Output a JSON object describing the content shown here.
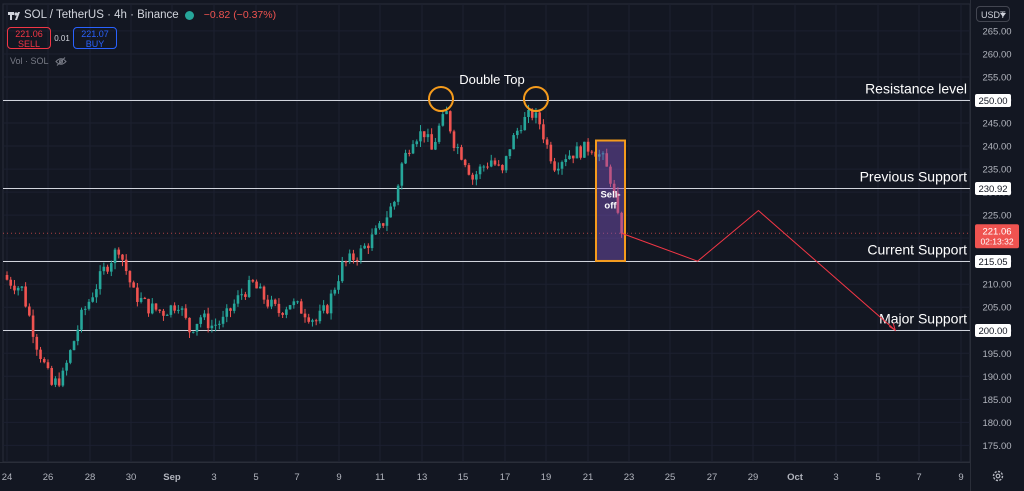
{
  "header": {
    "symbol": "SOL / TetherUS · 4h · Binance",
    "change": "−0.82 (−0.37%)",
    "sell_price": "221.06",
    "sell_label": "SELL",
    "spread": "0.01",
    "buy_price": "221.07",
    "buy_label": "BUY",
    "volume_label": "Vol · SOL",
    "currency_selector": "USDT",
    "up_color": "#26a69a",
    "down_color": "#ef5350"
  },
  "chart_data": {
    "type": "candlestick",
    "symbol": "SOL/USDT",
    "timeframe": "4h",
    "ylim": [
      170,
      267
    ],
    "y_ticks": [
      175,
      180,
      185,
      190,
      195,
      200,
      205,
      210,
      215,
      220,
      225,
      230,
      235,
      240,
      245,
      250,
      255,
      260,
      265
    ],
    "x_ticks": [
      "24",
      "26",
      "28",
      "30",
      "Sep",
      "3",
      "5",
      "7",
      "9",
      "11",
      "13",
      "15",
      "17",
      "19",
      "21",
      "23",
      "25",
      "27",
      "29",
      "Oct",
      "3",
      "5",
      "7",
      "9"
    ],
    "close_path": [
      [
        0,
        211
      ],
      [
        4,
        209
      ],
      [
        8,
        197
      ],
      [
        12,
        188
      ],
      [
        15,
        190
      ],
      [
        20,
        203
      ],
      [
        26,
        213
      ],
      [
        30,
        218
      ],
      [
        34,
        208
      ],
      [
        38,
        205
      ],
      [
        42,
        204
      ],
      [
        46,
        206
      ],
      [
        49,
        200
      ],
      [
        52,
        203
      ],
      [
        55,
        201
      ],
      [
        58,
        202
      ],
      [
        63,
        208
      ],
      [
        66,
        210
      ],
      [
        70,
        206
      ],
      [
        73,
        204
      ],
      [
        76,
        206
      ],
      [
        80,
        204
      ],
      [
        83,
        202
      ],
      [
        86,
        205
      ],
      [
        90,
        214
      ],
      [
        95,
        217
      ],
      [
        100,
        222
      ],
      [
        104,
        228
      ],
      [
        106,
        236
      ],
      [
        109,
        242
      ],
      [
        112,
        243
      ],
      [
        114,
        239
      ],
      [
        116,
        244
      ],
      [
        118,
        247
      ],
      [
        120,
        241
      ],
      [
        123,
        237
      ],
      [
        125,
        233
      ],
      [
        127,
        235
      ],
      [
        130,
        237
      ],
      [
        133,
        234
      ],
      [
        135,
        240
      ],
      [
        138,
        245
      ],
      [
        141,
        247
      ],
      [
        143,
        245
      ],
      [
        145,
        240
      ],
      [
        147,
        236
      ],
      [
        150,
        238
      ],
      [
        154,
        239
      ],
      [
        157,
        240
      ],
      [
        160,
        237
      ],
      [
        162,
        233
      ],
      [
        163,
        229
      ],
      [
        164,
        224
      ],
      [
        165,
        221
      ]
    ],
    "horizontal_levels": [
      {
        "label": "Resistance level",
        "price": 250.0,
        "tag": "250.00"
      },
      {
        "label": "Previous Support",
        "price": 230.92,
        "tag": "230.92"
      },
      {
        "label": "Current Support",
        "price": 215.05,
        "tag": "215.05"
      },
      {
        "label": "Major Support",
        "price": 200.0,
        "tag": "200.00"
      }
    ],
    "current_price": {
      "price": 221.06,
      "tag": "221.06",
      "countdown": "02:13:32"
    },
    "annotations": {
      "double_top": "Double Top",
      "sell_off": [
        "Sell-",
        "off"
      ]
    },
    "projection": [
      [
        221.06,
        0
      ],
      [
        215,
        10
      ],
      [
        226,
        18
      ],
      [
        200,
        36
      ]
    ]
  }
}
